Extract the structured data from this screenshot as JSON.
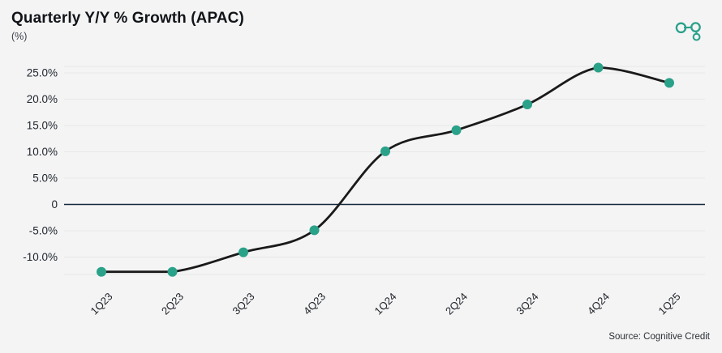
{
  "header": {
    "title": "Quarterly Y/Y % Growth (APAC)",
    "subtitle": "(%)"
  },
  "footer": {
    "source": "Source: Cognitive Credit"
  },
  "branding": {
    "logo_name": "cognitive-credit-logo",
    "logo_color": "#2aa189"
  },
  "colors": {
    "background": "#f4f4f5",
    "line": "#1a1a1a",
    "marker": "#2aa189",
    "grid": "#e7e7e9",
    "zero_line": "#14283c",
    "tick_text": "#20262d"
  },
  "chart_data": {
    "type": "line",
    "title": "Quarterly Y/Y % Growth (APAC)",
    "unit_label": "(%)",
    "categories": [
      "1Q23",
      "2Q23",
      "3Q23",
      "4Q23",
      "1Q24",
      "2Q24",
      "3Q24",
      "4Q24",
      "1Q25"
    ],
    "series": [
      {
        "name": "Quarterly Y/Y % Growth (APAC)",
        "values": [
          -12.8,
          -12.8,
          -9.1,
          -4.9,
          10.1,
          14.1,
          19.0,
          26.0,
          23.1
        ]
      }
    ],
    "y_ticks": [
      {
        "value": 25,
        "label": "25.0%"
      },
      {
        "value": 20,
        "label": "20.0%"
      },
      {
        "value": 15,
        "label": "15.0%"
      },
      {
        "value": 10,
        "label": "10.0%"
      },
      {
        "value": 5,
        "label": "5.0%"
      },
      {
        "value": 0,
        "label": "0"
      },
      {
        "value": -5,
        "label": "-5.0%"
      },
      {
        "value": -10,
        "label": "-10.0%"
      }
    ],
    "ylim": [
      -13.3,
      26.3
    ],
    "grid": true,
    "legend": false,
    "smooth": true,
    "marker": "circle",
    "x_label_rotation": -45,
    "annotations": []
  }
}
